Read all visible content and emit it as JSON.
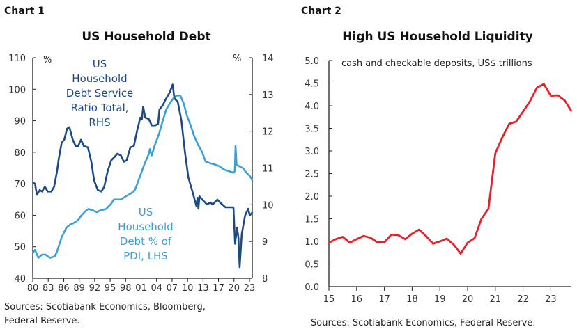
{
  "chart_data": [
    {
      "type": "line",
      "label": "Chart 1",
      "title": "US Household Debt",
      "left_unit": "%",
      "right_unit": "%",
      "ylim_left": [
        40,
        110
      ],
      "yticks_left": [
        "40",
        "50",
        "60",
        "70",
        "80",
        "90",
        "100",
        "110"
      ],
      "ylim_right": [
        8,
        14
      ],
      "yticks_right": [
        "8",
        "9",
        "10",
        "11",
        "12",
        "13",
        "14"
      ],
      "xticks": [
        "80",
        "83",
        "86",
        "89",
        "92",
        "95",
        "98",
        "01",
        "04",
        "07",
        "10",
        "13",
        "17",
        "20",
        "23"
      ],
      "xtick_years": [
        1980,
        1983,
        1986,
        1989,
        1992,
        1995,
        1998,
        2001,
        2004,
        2007,
        2010,
        2013,
        2017,
        2020,
        2023
      ],
      "colors": {
        "dsr": "#1d4a86",
        "dpi": "#3b9fd8"
      },
      "series": [
        {
          "name": "US Household Debt Service Ratio Total, RHS",
          "name_lines": [
            "US",
            "Household",
            "Debt Service",
            "Ratio Total,",
            "RHS"
          ],
          "axis": "right",
          "x": [
            1980,
            1980.45,
            1980.8,
            1981.35,
            1981.8,
            1982.35,
            1982.9,
            1983.6,
            1984.15,
            1984.7,
            1985.05,
            1985.6,
            1986.1,
            1986.65,
            1987.1,
            1987.75,
            1988.3,
            1988.8,
            1989.35,
            1989.9,
            1990.7,
            1991.35,
            1991.9,
            1992.6,
            1993.3,
            1993.85,
            1994.5,
            1995.2,
            1995.85,
            1996.4,
            1997.1,
            1997.65,
            1998.2,
            1998.9,
            1999.6,
            2000.25,
            2000.85,
            2001.15,
            2001.4,
            2001.8,
            2002.5,
            2003.05,
            2003.75,
            2004.3,
            2004.55,
            2005.2,
            2005.85,
            2006.55,
            2007.1,
            2007.45,
            2008.1,
            2008.8,
            2009.5,
            2010.15,
            2011.05,
            2011.7,
            2011.95,
            2012.1,
            2012.3,
            2012.85,
            2014.0,
            2014.9,
            2015.5,
            2016.7,
            2017.7,
            2018.35,
            2019.0,
            2019.9,
            2020.2,
            2020.6,
            2020.85,
            2021.1,
            2021.5,
            2022.15,
            2022.75,
            2023.05,
            2023.6
          ],
          "values": [
            10.61,
            10.57,
            10.27,
            10.4,
            10.36,
            10.49,
            10.36,
            10.36,
            10.49,
            10.91,
            11.26,
            11.69,
            11.77,
            12.07,
            12.11,
            11.77,
            11.6,
            11.6,
            11.77,
            11.6,
            11.56,
            11.17,
            10.66,
            10.4,
            10.36,
            10.49,
            10.91,
            11.21,
            11.3,
            11.39,
            11.34,
            11.17,
            11.21,
            11.56,
            11.6,
            12.03,
            12.37,
            12.33,
            12.67,
            12.37,
            12.33,
            12.16,
            12.16,
            12.2,
            12.59,
            12.71,
            12.89,
            13.06,
            13.27,
            12.89,
            12.8,
            12.29,
            11.43,
            10.74,
            10.31,
            9.97,
            10.19,
            9.89,
            10.23,
            10.14,
            10.01,
            10.06,
            10.01,
            10.14,
            10.01,
            9.93,
            9.93,
            9.93,
            8.94,
            9.37,
            9.11,
            8.3,
            9.2,
            9.71,
            9.89,
            9.71,
            9.8
          ]
        },
        {
          "name": "US Household Debt % of PDI, LHS",
          "name_lines": [
            "US",
            "Household",
            "Debt % of",
            "PDI, LHS"
          ],
          "axis": "left",
          "x": [
            1980,
            1980.45,
            1981.1,
            1981.8,
            1982.45,
            1983.35,
            1984.25,
            1984.7,
            1985.6,
            1986.5,
            1987.2,
            1987.9,
            1988.8,
            1989.45,
            1990.35,
            1990.8,
            1991.7,
            1992.4,
            1993.05,
            1994.2,
            1995.1,
            1995.75,
            1997.1,
            1998.0,
            1999.1,
            1999.8,
            2000.7,
            2001.6,
            2002.5,
            2002.7,
            2003.05,
            2003.6,
            2004.5,
            2005.2,
            2005.85,
            2006.55,
            2007.2,
            2007.9,
            2008.6,
            2009.25,
            2009.9,
            2010.6,
            2011.3,
            2012.15,
            2012.85,
            2013.65,
            2014.9,
            2016.4,
            2017.2,
            2018.1,
            2019.0,
            2019.9,
            2020.15,
            2020.3,
            2020.5,
            2021.05,
            2021.7,
            2022.4,
            2023.05,
            2023.6
          ],
          "values": [
            48,
            49,
            46.5,
            47.5,
            47.5,
            46.5,
            47,
            48.5,
            53,
            56,
            57,
            57.5,
            58.5,
            60,
            61.5,
            62,
            61.5,
            61,
            61.5,
            62,
            63.5,
            65,
            65,
            66,
            67,
            68,
            72,
            76,
            79.5,
            81,
            79,
            82,
            86,
            90,
            93.5,
            95.5,
            97,
            98,
            98,
            95.5,
            91.5,
            88.5,
            85,
            82,
            80,
            77,
            76.5,
            76,
            75.5,
            74.5,
            74,
            73.5,
            74,
            82,
            76,
            75.5,
            75,
            73.5,
            72.5,
            71
          ]
        }
      ],
      "sources_lines": [
        "Sources: Scotiabank Economics, Bloomberg,",
        "Federal Reserve."
      ]
    },
    {
      "type": "line",
      "label": "Chart 2",
      "title": "High US Household Liquidity",
      "subtitle": "cash and checkable deposits, US$ trillions",
      "ylim": [
        0,
        5
      ],
      "yticks": [
        "0.0",
        "0.5",
        "1.0",
        "1.5",
        "2.0",
        "2.5",
        "3.0",
        "3.5",
        "4.0",
        "4.5",
        "5.0"
      ],
      "xticks": [
        "15",
        "16",
        "17",
        "18",
        "19",
        "20",
        "21",
        "22",
        "23"
      ],
      "xlim": [
        2015,
        2023.75
      ],
      "color": "#e8202a",
      "x": [
        2015,
        2015.25,
        2015.5,
        2015.75,
        2016,
        2016.25,
        2016.5,
        2016.75,
        2017,
        2017.25,
        2017.5,
        2017.75,
        2018,
        2018.25,
        2018.5,
        2018.75,
        2019,
        2019.25,
        2019.5,
        2019.75,
        2020,
        2020.25,
        2020.5,
        2020.75,
        2021,
        2021.25,
        2021.5,
        2021.75,
        2022,
        2022.25,
        2022.5,
        2022.75,
        2023,
        2023.25,
        2023.5,
        2023.75
      ],
      "values": [
        0.97,
        1.05,
        1.1,
        0.97,
        1.05,
        1.12,
        1.08,
        0.98,
        0.98,
        1.15,
        1.14,
        1.05,
        1.17,
        1.26,
        1.12,
        0.95,
        1.0,
        1.06,
        0.93,
        0.73,
        0.97,
        1.07,
        1.5,
        1.72,
        2.95,
        3.3,
        3.6,
        3.65,
        3.87,
        4.1,
        4.4,
        4.48,
        4.22,
        4.23,
        4.12,
        3.87
      ],
      "sources": "Sources: Scotiabank Economics, Federal Reserve."
    }
  ]
}
